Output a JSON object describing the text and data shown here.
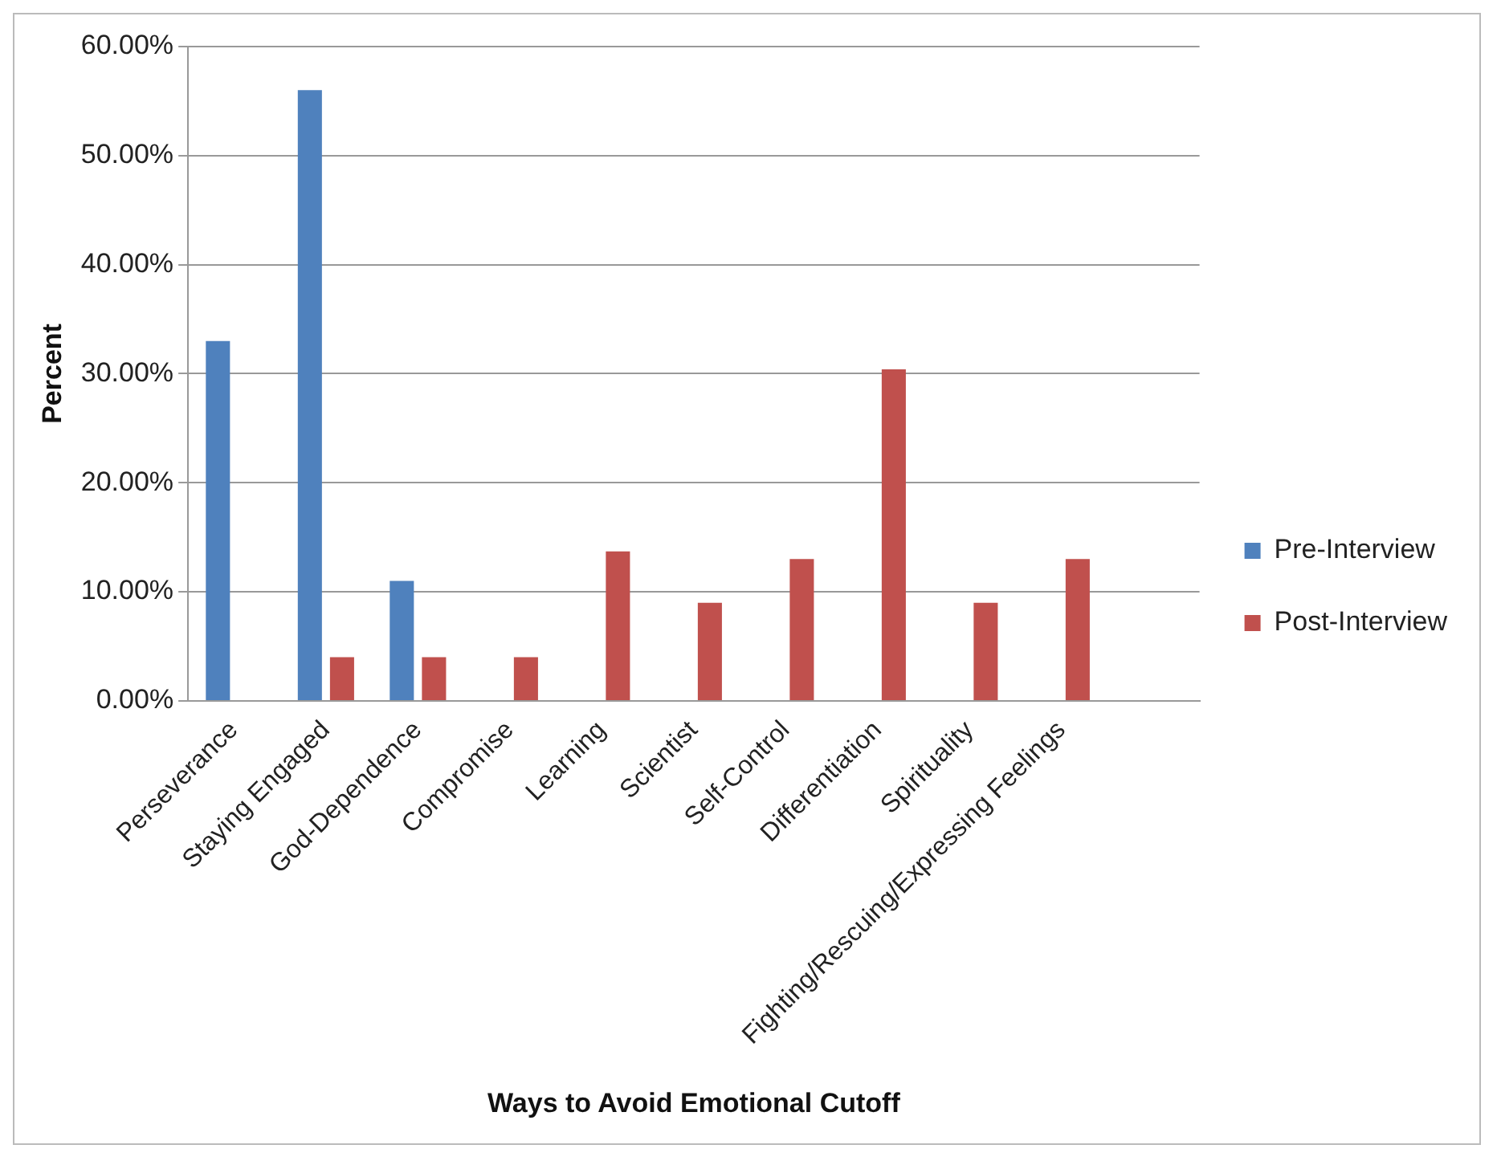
{
  "chart_data": {
    "type": "bar",
    "xlabel": "Ways to Avoid Emotional Cutoff",
    "ylabel": "Percent",
    "categories": [
      "Perseverance",
      "Staying Engaged",
      "God-Dependence",
      "Compromise",
      "Learning",
      "Scientist",
      "Self-Control",
      "Differentiation",
      "Spirituality",
      "Fighting/Rescuing/Expressing Feelings",
      null
    ],
    "series": [
      {
        "name": "Pre-Interview",
        "color": "#4f81bd",
        "values": [
          33,
          56,
          11,
          0,
          0,
          0,
          0,
          0,
          0,
          0,
          null
        ]
      },
      {
        "name": "Post-Interview",
        "color": "#c0504d",
        "values": [
          0,
          4,
          4,
          4,
          13.7,
          9,
          13,
          30.4,
          9,
          13,
          null
        ]
      }
    ],
    "ylim": [
      0,
      60
    ],
    "yticks": [
      {
        "value": 0,
        "label": "0.00%"
      },
      {
        "value": 10,
        "label": "10.00%"
      },
      {
        "value": 20,
        "label": "20.00%"
      },
      {
        "value": 30,
        "label": "30.00%"
      },
      {
        "value": 40,
        "label": "40.00%"
      },
      {
        "value": 50,
        "label": "50.00%"
      },
      {
        "value": 60,
        "label": "60.00%"
      }
    ],
    "grid": "y",
    "legend": "right"
  }
}
